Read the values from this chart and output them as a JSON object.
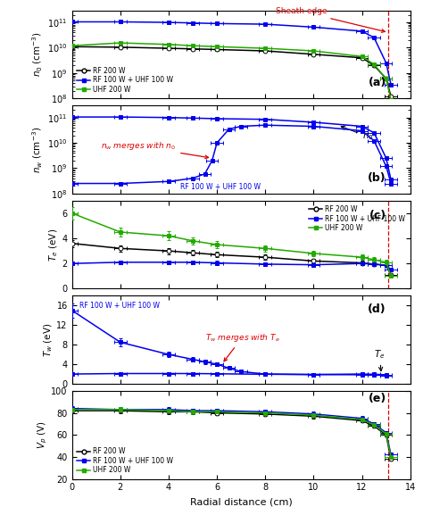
{
  "panel_a": {
    "ylim": [
      100000000.0,
      300000000000.0
    ],
    "yticks": [
      100000000.0,
      1000000000.0,
      10000000000.0,
      100000000000.0
    ],
    "rf200_x": [
      0,
      2,
      4,
      5,
      6,
      8,
      10,
      12,
      12.5,
      13,
      13.2
    ],
    "rf200_y": [
      11000000000.0,
      10500000000.0,
      9500000000.0,
      9000000000.0,
      8500000000.0,
      7500000000.0,
      5500000000.0,
      4000000000.0,
      2000000000.0,
      600000000.0,
      120000000.0
    ],
    "rfuhf_x": [
      0,
      2,
      4,
      5,
      6,
      8,
      10,
      12,
      12.5,
      13,
      13.2
    ],
    "rfuhf_y": [
      105000000000.0,
      105000000000.0,
      100000000000.0,
      95000000000.0,
      90000000000.0,
      85000000000.0,
      65000000000.0,
      45000000000.0,
      25000000000.0,
      2500000000.0,
      350000000.0
    ],
    "uhf200_x": [
      0,
      2,
      4,
      5,
      6,
      8,
      10,
      12,
      12.5,
      13,
      13.2
    ],
    "uhf200_y": [
      12000000000.0,
      15500000000.0,
      13500000000.0,
      12000000000.0,
      11000000000.0,
      9500000000.0,
      7500000000.0,
      4500000000.0,
      2200000000.0,
      600000000.0,
      90000000.0
    ],
    "sheath_x": 13.1
  },
  "panel_b": {
    "ylim": [
      100000000.0,
      300000000000.0
    ],
    "yticks": [
      100000000.0,
      1000000000.0,
      10000000000.0,
      100000000000.0
    ],
    "nw_x": [
      0,
      2,
      4,
      5,
      5.5,
      5.8,
      6.0,
      6.5,
      7,
      8,
      10,
      12,
      12.5,
      13,
      13.2
    ],
    "nw_y": [
      250000000.0,
      250000000.0,
      300000000.0,
      400000000.0,
      600000000.0,
      2000000000.0,
      10000000000.0,
      35000000000.0,
      45000000000.0,
      50000000000.0,
      45000000000.0,
      30000000000.0,
      12000000000.0,
      1200000000.0,
      250000000.0
    ],
    "n0_x": [
      0,
      2,
      4,
      5,
      6,
      8,
      10,
      12,
      12.5,
      13,
      13.2
    ],
    "n0_y": [
      105000000000.0,
      105000000000.0,
      100000000000.0,
      95000000000.0,
      90000000000.0,
      85000000000.0,
      65000000000.0,
      45000000000.0,
      25000000000.0,
      2500000000.0,
      350000000.0
    ]
  },
  "panel_c": {
    "ylim": [
      0,
      7
    ],
    "yticks": [
      0,
      2,
      4,
      6
    ],
    "rf200_x": [
      0,
      2,
      4,
      5,
      6,
      8,
      10,
      12,
      12.5,
      13,
      13.2
    ],
    "rf200_y": [
      3.6,
      3.2,
      3.0,
      2.85,
      2.7,
      2.5,
      2.2,
      2.05,
      1.95,
      1.85,
      1.1
    ],
    "rfuhf_x": [
      0,
      2,
      4,
      5,
      6,
      8,
      10,
      12,
      12.5,
      13,
      13.2
    ],
    "rfuhf_y": [
      2.0,
      2.1,
      2.1,
      2.1,
      2.05,
      1.95,
      1.9,
      2.0,
      1.95,
      1.85,
      1.5
    ],
    "uhf200_x": [
      0,
      2,
      4,
      5,
      6,
      8,
      10,
      12,
      12.5,
      13,
      13.2
    ],
    "uhf200_y": [
      6.0,
      4.5,
      4.2,
      3.8,
      3.5,
      3.2,
      2.8,
      2.5,
      2.3,
      2.1,
      1.0
    ],
    "sheath_x": 13.1
  },
  "panel_d": {
    "ylim": [
      0,
      18
    ],
    "yticks": [
      0,
      4,
      8,
      12,
      16
    ],
    "tw_x": [
      0,
      2,
      4,
      5,
      5.5,
      6,
      6.5,
      7,
      8,
      10,
      12,
      12.5,
      13
    ],
    "tw_y": [
      15.0,
      8.5,
      6.0,
      5.0,
      4.5,
      4.0,
      3.2,
      2.5,
      2.0,
      1.9,
      1.85,
      1.8,
      1.7
    ],
    "te_x": [
      0,
      2,
      4,
      5,
      6,
      8,
      10,
      12,
      12.5,
      13
    ],
    "te_y": [
      2.0,
      2.1,
      2.1,
      2.1,
      2.05,
      1.95,
      1.9,
      2.0,
      1.95,
      1.85
    ]
  },
  "panel_e": {
    "ylim": [
      20,
      100
    ],
    "yticks": [
      20,
      40,
      60,
      80,
      100
    ],
    "rf200_x": [
      0,
      2,
      4,
      5,
      6,
      8,
      10,
      12,
      12.5,
      13,
      13.2
    ],
    "rf200_y": [
      82,
      82,
      81,
      81,
      80,
      79,
      77,
      73,
      68,
      60,
      38
    ],
    "rfuhf_x": [
      0,
      2,
      4,
      5,
      6,
      8,
      10,
      12,
      12.5,
      13,
      13.2
    ],
    "rfuhf_y": [
      84,
      83,
      83,
      82,
      82,
      81,
      79,
      75,
      70,
      62,
      42
    ],
    "uhf200_x": [
      0,
      2,
      4,
      5,
      6,
      8,
      10,
      12,
      12.5,
      13,
      13.2
    ],
    "uhf200_y": [
      83,
      83,
      82,
      81,
      81,
      80,
      78,
      74,
      69,
      61,
      40
    ],
    "sheath_x": 13.1
  },
  "xlim": [
    0,
    14
  ],
  "xticks": [
    0,
    2,
    4,
    6,
    8,
    10,
    12,
    14
  ],
  "xlabel": "Radial distance (cm)"
}
